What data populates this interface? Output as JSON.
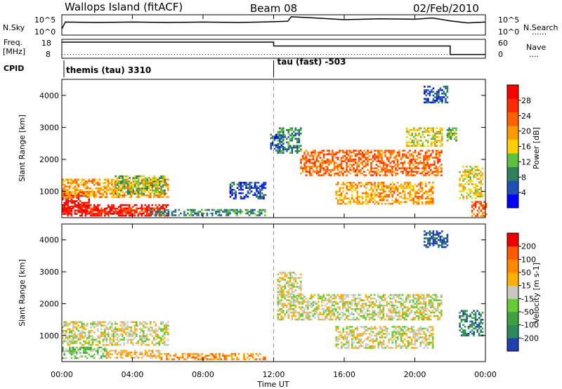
{
  "header": {
    "station": "Wallops Island (fitACF)",
    "beam": "Beam 08",
    "date": "02/Feb/2010"
  },
  "side_labels": {
    "nsky": "N.Sky",
    "nsearch": "N.Search",
    "freq_line1": "Freq.",
    "freq_line2": "[MHz]",
    "nave": "Nave",
    "cpid": "CPID",
    "nsky_ticks": [
      "10^5",
      "10^0"
    ],
    "nsearch_ticks": [
      "10^5",
      "10^0"
    ],
    "freq_ticks": [
      "18",
      "8"
    ],
    "nave_ticks": [
      "60",
      "0"
    ],
    "dots": "......",
    "dots_short": "...."
  },
  "cpid_segments": [
    {
      "start": 0.0,
      "end": 12.0,
      "label": "themis (tau) 3310"
    },
    {
      "start": 12.0,
      "end": 24.0,
      "label": "tau (fast) -503"
    }
  ],
  "time_axis": {
    "ticks": [
      "00:00",
      "04:00",
      "08:00",
      "12:00",
      "16:00",
      "20:00",
      "00:00"
    ],
    "tick_hours": [
      0,
      4,
      8,
      12,
      16,
      20,
      24
    ],
    "xlabel": "Time UT",
    "range_hours": [
      0,
      24
    ]
  },
  "range_axis": {
    "ylabel": "Slant Range [km]",
    "ticks": [
      1000,
      2000,
      3000,
      4000
    ],
    "tick_labels": [
      "1000",
      "2000",
      "3000",
      "4000"
    ],
    "ylim": [
      180,
      4500
    ]
  },
  "colorbars": {
    "power": {
      "title": "Power [dB]",
      "labels": [
        "28",
        "24",
        "20",
        "16",
        "12",
        "8",
        "4"
      ],
      "colors": [
        "#0000ff",
        "#1f4fb4",
        "#2f7f5a",
        "#5fbf3f",
        "#ffd000",
        "#ff9a00",
        "#ff6000",
        "#ff2a00",
        "#ff0000"
      ]
    },
    "velocity": {
      "title": "Velocity [m s-1]",
      "labels": [
        "200",
        "100",
        "50",
        "15",
        "-15",
        "-50",
        "-100",
        "-200"
      ],
      "colors": [
        "#1f3fb0",
        "#2a8a5a",
        "#3fa040",
        "#66cc33",
        "#c8c8c0",
        "#ffb000",
        "#ff8800",
        "#ff5a00",
        "#ee0000"
      ]
    }
  },
  "chart_data": [
    {
      "type": "line",
      "title": "N.Sky / N.Search",
      "x_hours": [
        0,
        0.2,
        2,
        4,
        6,
        8,
        10,
        12,
        12.8,
        13,
        14,
        16,
        18,
        20,
        21,
        22,
        23,
        24
      ],
      "series": [
        {
          "name": "N.Sky",
          "values": [
            1.5,
            3.2,
            3.1,
            3.2,
            3.1,
            3.2,
            3.1,
            3.3,
            3.4,
            4.5,
            4.3,
            3.8,
            4.0,
            3.9,
            4.2,
            3.5,
            3.0,
            3.2
          ]
        },
        {
          "name": "N.Search",
          "values": [
            0.2,
            0.2,
            0.2,
            0.2,
            0.2,
            0.2,
            0.2,
            0.2,
            0.2,
            0.2,
            0.2,
            0.2,
            0.2,
            0.2,
            0.2,
            0.2,
            0.2,
            0.2
          ]
        }
      ],
      "ylim": [
        0,
        5
      ]
    },
    {
      "type": "line",
      "title": "Freq / Nave",
      "segments_freq": [
        {
          "start": 0.0,
          "end": 12.0,
          "value": 16.5
        },
        {
          "start": 12.0,
          "end": 22.0,
          "value": 14.5
        },
        {
          "start": 22.0,
          "end": 24.0,
          "value": 10.0
        }
      ],
      "nave": [
        {
          "start": 0.0,
          "end": 24.0,
          "value": 12
        }
      ],
      "ylim_freq": [
        8,
        18
      ],
      "ylim_nave": [
        0,
        60
      ]
    },
    {
      "type": "heatmap",
      "title": "Power [dB]",
      "xlabel": "Time UT",
      "ylabel": "Slant Range [km]",
      "regions": [
        {
          "t0": 0.0,
          "t1": 6.0,
          "r0": 250,
          "r1": 600,
          "level": 8
        },
        {
          "t0": 0.0,
          "t1": 1.5,
          "r0": 350,
          "r1": 1000,
          "level": 8
        },
        {
          "t0": 1.5,
          "t1": 5.5,
          "r0": 300,
          "r1": 500,
          "level": 7
        },
        {
          "t0": 0.0,
          "t1": 6.0,
          "r0": 850,
          "r1": 1400,
          "level": 5
        },
        {
          "t0": 3.0,
          "t1": 5.8,
          "r0": 900,
          "r1": 1500,
          "level": 3
        },
        {
          "t0": 5.0,
          "t1": 11.5,
          "r0": 250,
          "r1": 450,
          "level": 2
        },
        {
          "t0": 9.5,
          "t1": 11.5,
          "r0": 800,
          "r1": 1300,
          "level": 1
        },
        {
          "t0": 11.8,
          "t1": 12.5,
          "r0": 2300,
          "r1": 2800,
          "level": 1
        },
        {
          "t0": 12.2,
          "t1": 13.5,
          "r0": 2200,
          "r1": 3000,
          "level": 2
        },
        {
          "t0": 13.5,
          "t1": 21.5,
          "r0": 1500,
          "r1": 2300,
          "level": 6
        },
        {
          "t0": 15.5,
          "t1": 21.0,
          "r0": 600,
          "r1": 1300,
          "level": 5
        },
        {
          "t0": 19.5,
          "t1": 21.5,
          "r0": 2400,
          "r1": 3000,
          "level": 4
        },
        {
          "t0": 20.5,
          "t1": 21.8,
          "r0": 3800,
          "r1": 4300,
          "level": 1
        },
        {
          "t0": 21.8,
          "t1": 22.3,
          "r0": 2600,
          "r1": 3000,
          "level": 3
        },
        {
          "t0": 22.5,
          "t1": 23.8,
          "r0": 800,
          "r1": 1800,
          "level": 4
        },
        {
          "t0": 23.2,
          "t1": 24.0,
          "r0": 250,
          "r1": 700,
          "level": 6
        }
      ]
    },
    {
      "type": "heatmap",
      "title": "Velocity [m s-1]",
      "xlabel": "Time UT",
      "ylabel": "Slant Range [km]",
      "regions": [
        {
          "t0": 0.0,
          "t1": 6.0,
          "r0": 700,
          "r1": 1450,
          "level": 4
        },
        {
          "t0": 0.0,
          "t1": 2.5,
          "r0": 300,
          "r1": 650,
          "level": 3
        },
        {
          "t0": 2.5,
          "t1": 5.5,
          "r0": 300,
          "r1": 550,
          "level": 5
        },
        {
          "t0": 5.5,
          "t1": 11.5,
          "r0": 250,
          "r1": 450,
          "level": 6
        },
        {
          "t0": 12.2,
          "t1": 21.5,
          "r0": 1500,
          "r1": 2300,
          "level": 4
        },
        {
          "t0": 15.5,
          "t1": 21.0,
          "r0": 600,
          "r1": 1300,
          "level": 4
        },
        {
          "t0": 12.2,
          "t1": 13.5,
          "r0": 2200,
          "r1": 3000,
          "level": 4
        },
        {
          "t0": 20.5,
          "t1": 21.8,
          "r0": 3800,
          "r1": 4300,
          "level": 0
        },
        {
          "t0": 22.5,
          "t1": 23.8,
          "r0": 1000,
          "r1": 1800,
          "level": 1
        }
      ]
    }
  ]
}
